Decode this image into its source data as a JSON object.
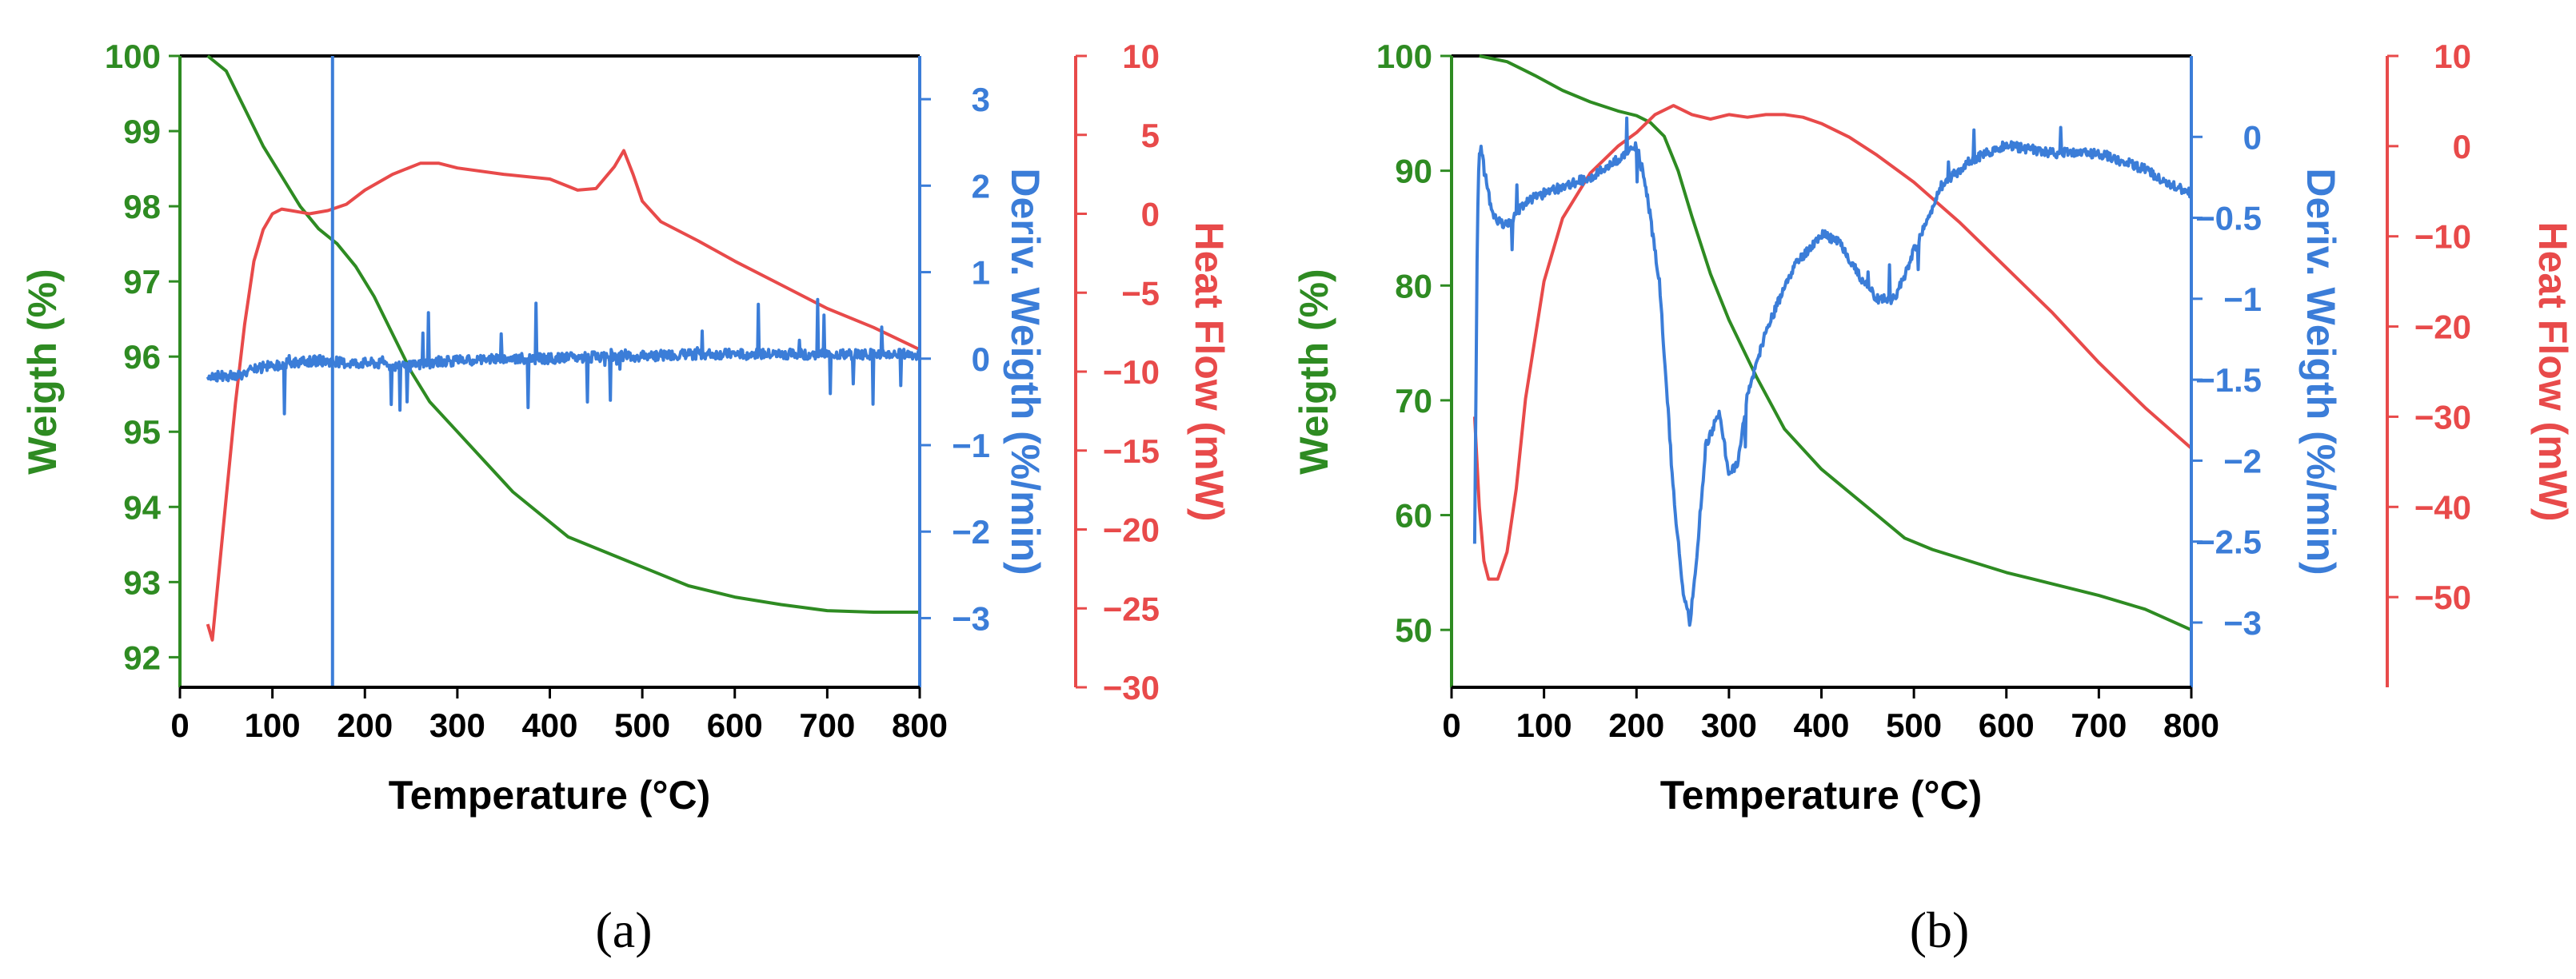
{
  "colors": {
    "weight": "#2e8b22",
    "deriv": "#3b7dd8",
    "heat": "#e84a4a",
    "frame": "#000000"
  },
  "chart_data": [
    {
      "type": "line",
      "panel": "a",
      "caption": "(a)",
      "xlabel": "Temperature (°C)",
      "xlim": [
        0,
        800
      ],
      "xticks": [
        0,
        100,
        200,
        300,
        400,
        500,
        600,
        700,
        800
      ],
      "axes": {
        "weight": {
          "label": "Weigth (%)",
          "lim": [
            91.6,
            100
          ],
          "ticks": [
            92,
            93,
            94,
            95,
            96,
            97,
            98,
            99,
            100
          ]
        },
        "deriv": {
          "label": "Deriv. Weigth (%/min)",
          "lim": [
            -3.8,
            3.5
          ],
          "ticks": [
            -3,
            -2,
            -1,
            0,
            1,
            2,
            3
          ]
        },
        "heat": {
          "label": "Heat Flow (mW)",
          "lim": [
            -30,
            10
          ],
          "ticks": [
            -30,
            -25,
            -20,
            -15,
            -10,
            -5,
            0,
            5,
            10
          ]
        }
      },
      "series": [
        {
          "name": "Weight",
          "axis": "weight",
          "x": [
            30,
            50,
            70,
            90,
            110,
            130,
            150,
            170,
            190,
            210,
            230,
            250,
            270,
            300,
            330,
            360,
            390,
            420,
            450,
            480,
            510,
            550,
            600,
            650,
            700,
            750,
            800
          ],
          "y": [
            100,
            99.8,
            99.3,
            98.8,
            98.4,
            98.0,
            97.7,
            97.5,
            97.2,
            96.8,
            96.3,
            95.8,
            95.4,
            95.0,
            94.6,
            94.2,
            93.9,
            93.6,
            93.45,
            93.3,
            93.15,
            92.95,
            92.8,
            92.7,
            92.62,
            92.6,
            92.6
          ]
        },
        {
          "name": "Heat Flow",
          "axis": "heat",
          "x": [
            30,
            35,
            40,
            50,
            60,
            70,
            80,
            90,
            100,
            110,
            120,
            140,
            160,
            180,
            200,
            230,
            260,
            280,
            300,
            350,
            400,
            430,
            450,
            470,
            480,
            490,
            500,
            520,
            560,
            600,
            650,
            700,
            750,
            800
          ],
          "y": [
            -26,
            -27,
            -24,
            -18,
            -12,
            -7,
            -3,
            -1,
            0,
            0.3,
            0.2,
            0,
            0.2,
            0.6,
            1.5,
            2.5,
            3.2,
            3.2,
            2.9,
            2.5,
            2.2,
            1.5,
            1.6,
            3.0,
            4.0,
            2.5,
            0.8,
            -0.5,
            -1.7,
            -3.0,
            -4.5,
            -6.0,
            -7.2,
            -8.6
          ]
        },
        {
          "name": "Deriv. Weight",
          "axis": "deriv",
          "x": [
            30,
            60,
            90,
            120,
            150,
            180,
            210,
            240,
            270,
            300,
            350,
            400,
            450,
            500,
            550,
            600,
            650,
            700,
            750,
            800
          ],
          "y": [
            -0.2,
            -0.2,
            -0.1,
            -0.05,
            -0.02,
            -0.05,
            -0.05,
            -0.1,
            -0.05,
            -0.02,
            0,
            0,
            0.02,
            0.03,
            0.05,
            0.05,
            0.05,
            0.05,
            0.05,
            0.05
          ]
        }
      ],
      "vline": 165
    },
    {
      "type": "line",
      "panel": "b",
      "caption": "(b)",
      "xlabel": "Temperature (°C)",
      "xlim": [
        0,
        800
      ],
      "xticks": [
        0,
        100,
        200,
        300,
        400,
        500,
        600,
        700,
        800
      ],
      "axes": {
        "weight": {
          "label": "Weigth (%)",
          "lim": [
            45,
            100
          ],
          "ticks": [
            50,
            60,
            70,
            80,
            90,
            100
          ]
        },
        "deriv": {
          "label": "Deriv. Weigth (%/min)",
          "lim": [
            -3.4,
            0.5
          ],
          "ticks": [
            -3.0,
            -2.5,
            -2.0,
            -1.5,
            -1.0,
            -0.5,
            0.0
          ]
        },
        "heat": {
          "label": "Heat Flow (mW)",
          "lim": [
            -60,
            10
          ],
          "ticks": [
            -50,
            -40,
            -30,
            -20,
            -10,
            0,
            10
          ]
        }
      },
      "series": [
        {
          "name": "Weight",
          "axis": "weight",
          "x": [
            30,
            60,
            90,
            120,
            150,
            180,
            200,
            215,
            230,
            245,
            260,
            280,
            300,
            330,
            360,
            400,
            430,
            460,
            490,
            520,
            560,
            600,
            650,
            700,
            750,
            800
          ],
          "y": [
            100,
            99.5,
            98.3,
            97.0,
            96.0,
            95.2,
            94.8,
            94.2,
            93.0,
            90.0,
            86.0,
            81.0,
            77.0,
            72.0,
            67.5,
            64.0,
            62.0,
            60.0,
            58.0,
            57.0,
            56.0,
            55.0,
            54.0,
            53.0,
            51.8,
            50.0
          ]
        },
        {
          "name": "Heat Flow",
          "axis": "heat",
          "x": [
            25,
            30,
            35,
            40,
            50,
            60,
            70,
            80,
            100,
            120,
            150,
            180,
            200,
            220,
            240,
            260,
            280,
            300,
            320,
            340,
            360,
            380,
            400,
            430,
            460,
            500,
            550,
            600,
            650,
            700,
            750,
            800
          ],
          "y": [
            -30,
            -40,
            -46,
            -48,
            -48,
            -45,
            -38,
            -28,
            -15,
            -8,
            -3,
            0,
            1.5,
            3.5,
            4.5,
            3.5,
            3.0,
            3.5,
            3.2,
            3.5,
            3.5,
            3.2,
            2.5,
            1.0,
            -1.0,
            -4.0,
            -8.5,
            -13.5,
            -18.5,
            -24.0,
            -29.0,
            -33.5
          ]
        },
        {
          "name": "Deriv. Weight",
          "axis": "deriv",
          "x": [
            25,
            28,
            30,
            32,
            35,
            45,
            60,
            80,
            100,
            150,
            190,
            200,
            210,
            225,
            240,
            250,
            258,
            265,
            275,
            290,
            300,
            310,
            320,
            340,
            370,
            400,
            420,
            440,
            460,
            480,
            500,
            530,
            560,
            600,
            650,
            700,
            750,
            780,
            800
          ],
          "y": [
            -2.5,
            -0.5,
            -0.1,
            -0.05,
            -0.2,
            -0.5,
            -0.55,
            -0.4,
            -0.35,
            -0.25,
            -0.1,
            -0.05,
            -0.3,
            -0.9,
            -2.2,
            -2.8,
            -3.0,
            -2.6,
            -1.9,
            -1.7,
            -2.1,
            -2.0,
            -1.6,
            -1.2,
            -0.8,
            -0.6,
            -0.65,
            -0.85,
            -1.0,
            -1.0,
            -0.7,
            -0.3,
            -0.15,
            -0.05,
            -0.1,
            -0.1,
            -0.2,
            -0.3,
            -0.35
          ]
        }
      ]
    }
  ]
}
